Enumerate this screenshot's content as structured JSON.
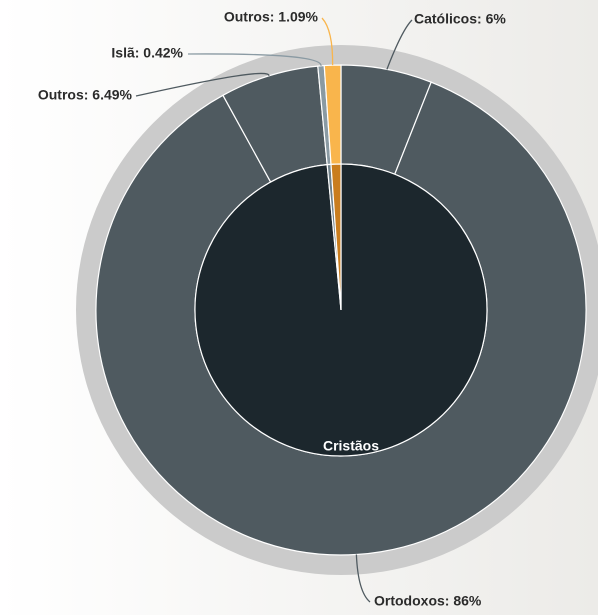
{
  "chart_data": {
    "type": "sunburst",
    "groups": [
      {
        "name": "Cristãos",
        "color": "#1c272d",
        "children": {
          "labels": [
            "Católicos: 6%",
            "Ortodoxos: 86%",
            "Outros: 6.49%"
          ],
          "values": [
            6,
            86,
            6.49
          ],
          "colors": [
            "#4f5a60",
            "#4f5a60",
            "#4f5a60"
          ]
        }
      },
      {
        "name": null,
        "color": "#6f8089",
        "children": {
          "labels": [
            "Islã: 0.42%"
          ],
          "values": [
            0.42
          ],
          "colors": [
            "#8a9aa3"
          ]
        }
      },
      {
        "name": null,
        "color": "#c97d1e",
        "children": {
          "labels": [
            "Outros: 1.09%"
          ],
          "values": [
            1.09
          ],
          "colors": [
            "#f9b54c"
          ]
        }
      }
    ]
  }
}
